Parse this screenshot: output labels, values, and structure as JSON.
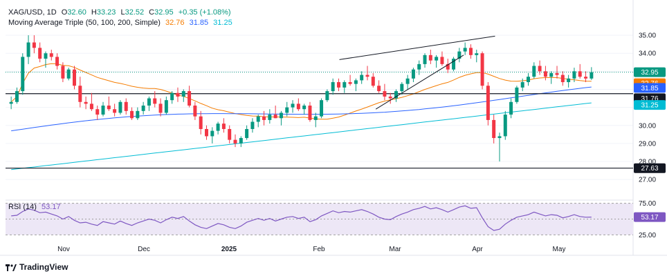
{
  "header": {
    "symbol": "XAG/USD, 1D",
    "open_label": "O",
    "open": "32.60",
    "high_label": "H",
    "high": "33.23",
    "low_label": "L",
    "low": "32.52",
    "close_label": "C",
    "close": "32.95",
    "change": "+0.35 (+1.08%)",
    "ma_label": "Moving Average Triple (50, 100, 200, Simple)",
    "ma50": "32.76",
    "ma100": "31.85",
    "ma200": "31.25"
  },
  "colors": {
    "up": "#089981",
    "down": "#f23645",
    "ma50": "#f57c00",
    "ma100": "#2962ff",
    "ma200": "#00bcd4",
    "rsi": "#7e57c2",
    "rsi_band": "#ede7f6",
    "hline": "#131722",
    "grid": "#f0f3fa",
    "price_line": "#089981"
  },
  "chart_data": [
    {
      "type": "candlestick",
      "x_ticks": [
        "Nov",
        "Dec",
        "2025",
        "Feb",
        "Mar",
        "Apr",
        "May"
      ],
      "y_ticks": [
        27.0,
        28.0,
        29.0,
        30.0,
        31.0,
        32.0,
        33.0,
        34.0,
        35.0
      ],
      "ylim": [
        26.7,
        35.5
      ],
      "horizontal_levels": [
        31.76,
        27.63
      ],
      "last_price": 32.95,
      "price_labels": [
        "32.95",
        "32.76",
        "31.85",
        "31.76",
        "31.25",
        "27.63"
      ],
      "ma_values_last": {
        "ma50": 32.76,
        "ma100": 31.85,
        "ma200": 31.25
      },
      "trendlines": [
        {
          "x": [
            0.532,
            0.78
          ],
          "y": [
            33.65,
            34.95
          ]
        },
        {
          "x": [
            0.59,
            0.73
          ],
          "y": [
            30.9,
            33.9
          ]
        }
      ],
      "ohlc": [
        [
          31.2,
          31.6,
          30.9,
          31.3
        ],
        [
          31.3,
          32.1,
          31.2,
          31.9
        ],
        [
          31.9,
          34.0,
          31.7,
          33.8
        ],
        [
          33.8,
          35.0,
          33.4,
          34.6
        ],
        [
          34.6,
          35.0,
          34.0,
          34.3
        ],
        [
          34.3,
          34.6,
          33.5,
          33.7
        ],
        [
          33.7,
          34.1,
          33.2,
          34.0
        ],
        [
          34.0,
          34.2,
          33.6,
          33.8
        ],
        [
          33.8,
          34.0,
          33.1,
          33.3
        ],
        [
          33.3,
          33.5,
          32.4,
          32.6
        ],
        [
          32.6,
          33.2,
          32.5,
          33.1
        ],
        [
          33.1,
          33.3,
          32.0,
          32.2
        ],
        [
          32.2,
          32.7,
          31.0,
          31.3
        ],
        [
          31.3,
          31.6,
          30.9,
          31.2
        ],
        [
          31.2,
          31.8,
          30.8,
          30.9
        ],
        [
          30.9,
          31.1,
          30.3,
          30.6
        ],
        [
          30.6,
          31.3,
          30.5,
          31.1
        ],
        [
          31.1,
          31.6,
          30.8,
          30.9
        ],
        [
          30.9,
          31.2,
          30.5,
          30.7
        ],
        [
          30.7,
          31.4,
          30.6,
          31.3
        ],
        [
          31.3,
          31.5,
          30.6,
          30.8
        ],
        [
          30.8,
          31.0,
          30.3,
          30.4
        ],
        [
          30.4,
          31.0,
          30.3,
          30.8
        ],
        [
          30.8,
          31.3,
          30.6,
          31.1
        ],
        [
          31.1,
          31.6,
          30.8,
          31.5
        ],
        [
          31.5,
          31.9,
          31.0,
          31.2
        ],
        [
          31.2,
          31.5,
          30.5,
          30.7
        ],
        [
          30.7,
          31.6,
          30.6,
          31.4
        ],
        [
          31.4,
          31.9,
          31.2,
          31.8
        ],
        [
          31.8,
          32.1,
          31.3,
          31.6
        ],
        [
          31.6,
          32.0,
          31.3,
          31.9
        ],
        [
          31.9,
          32.2,
          31.0,
          31.1
        ],
        [
          31.1,
          31.3,
          30.3,
          30.5
        ],
        [
          30.5,
          30.8,
          29.5,
          29.8
        ],
        [
          29.8,
          30.0,
          29.2,
          29.4
        ],
        [
          29.4,
          29.9,
          29.0,
          29.7
        ],
        [
          29.7,
          30.2,
          29.5,
          30.1
        ],
        [
          30.1,
          30.4,
          29.6,
          29.8
        ],
        [
          29.8,
          30.0,
          29.0,
          29.2
        ],
        [
          29.2,
          29.5,
          28.8,
          29.0
        ],
        [
          29.0,
          29.4,
          28.8,
          29.3
        ],
        [
          29.3,
          30.0,
          29.2,
          29.8
        ],
        [
          29.8,
          30.4,
          29.6,
          30.2
        ],
        [
          30.2,
          30.6,
          29.9,
          30.5
        ],
        [
          30.5,
          30.8,
          30.0,
          30.3
        ],
        [
          30.3,
          30.9,
          30.1,
          30.6
        ],
        [
          30.6,
          31.1,
          30.4,
          30.4
        ],
        [
          30.4,
          30.8,
          30.0,
          30.7
        ],
        [
          30.7,
          31.3,
          30.5,
          31.0
        ],
        [
          31.0,
          31.4,
          30.7,
          31.2
        ],
        [
          31.2,
          31.5,
          30.8,
          30.9
        ],
        [
          30.9,
          31.2,
          30.6,
          31.1
        ],
        [
          31.1,
          31.3,
          30.2,
          30.3
        ],
        [
          30.3,
          30.7,
          29.9,
          30.5
        ],
        [
          30.5,
          31.5,
          30.4,
          31.4
        ],
        [
          31.4,
          32.0,
          31.3,
          31.9
        ],
        [
          31.9,
          32.6,
          31.7,
          32.4
        ],
        [
          32.4,
          32.6,
          31.9,
          32.1
        ],
        [
          32.1,
          32.5,
          31.8,
          32.4
        ],
        [
          32.4,
          32.8,
          32.2,
          32.3
        ],
        [
          32.3,
          32.6,
          31.9,
          32.5
        ],
        [
          32.5,
          33.0,
          32.3,
          32.8
        ],
        [
          32.8,
          33.3,
          32.5,
          32.7
        ],
        [
          32.7,
          32.9,
          32.1,
          32.2
        ],
        [
          32.2,
          32.5,
          31.8,
          31.9
        ],
        [
          31.9,
          32.3,
          31.4,
          31.6
        ],
        [
          31.6,
          31.8,
          31.2,
          31.5
        ],
        [
          31.5,
          32.0,
          31.3,
          31.9
        ],
        [
          31.9,
          32.4,
          31.7,
          32.3
        ],
        [
          32.3,
          32.8,
          32.0,
          32.6
        ],
        [
          32.6,
          33.2,
          32.4,
          33.1
        ],
        [
          33.1,
          33.6,
          32.8,
          33.4
        ],
        [
          33.4,
          34.0,
          33.2,
          33.9
        ],
        [
          33.9,
          34.2,
          33.4,
          33.6
        ],
        [
          33.6,
          33.9,
          33.2,
          33.8
        ],
        [
          33.8,
          34.1,
          33.3,
          33.4
        ],
        [
          33.4,
          33.7,
          32.9,
          33.1
        ],
        [
          33.1,
          33.8,
          33.0,
          33.7
        ],
        [
          33.7,
          34.3,
          33.5,
          34.1
        ],
        [
          34.1,
          34.6,
          33.9,
          34.3
        ],
        [
          34.3,
          34.5,
          33.7,
          33.9
        ],
        [
          33.9,
          34.2,
          33.5,
          34.0
        ],
        [
          34.0,
          34.1,
          32.0,
          32.2
        ],
        [
          32.2,
          32.4,
          30.0,
          30.3
        ],
        [
          30.3,
          30.6,
          29.0,
          29.3
        ],
        [
          29.3,
          29.6,
          28.0,
          29.4
        ],
        [
          29.4,
          30.8,
          29.2,
          30.6
        ],
        [
          30.6,
          31.5,
          30.4,
          31.3
        ],
        [
          31.3,
          32.2,
          31.2,
          32.1
        ],
        [
          32.1,
          32.6,
          31.9,
          32.4
        ],
        [
          32.4,
          32.9,
          32.2,
          32.7
        ],
        [
          32.7,
          33.5,
          32.6,
          33.3
        ],
        [
          33.3,
          33.6,
          32.8,
          33.0
        ],
        [
          33.0,
          33.3,
          32.5,
          32.7
        ],
        [
          32.7,
          33.0,
          32.3,
          32.9
        ],
        [
          32.9,
          33.3,
          32.6,
          32.8
        ],
        [
          32.8,
          33.0,
          32.2,
          32.4
        ],
        [
          32.4,
          32.8,
          32.1,
          32.6
        ],
        [
          32.6,
          33.2,
          32.4,
          33.0
        ],
        [
          33.0,
          33.4,
          32.6,
          32.7
        ],
        [
          32.7,
          33.0,
          32.4,
          32.6
        ],
        [
          32.6,
          33.23,
          32.52,
          32.95
        ]
      ]
    },
    {
      "type": "line",
      "name": "RSI (14)",
      "last_value": "53.17",
      "y_ticks": [
        "75.00",
        "25.00"
      ],
      "ylim": [
        20,
        80
      ],
      "values": [
        55,
        56,
        62,
        66,
        64,
        60,
        61,
        58,
        55,
        50,
        54,
        48,
        44,
        45,
        42,
        40,
        46,
        44,
        42,
        47,
        43,
        40,
        44,
        47,
        50,
        48,
        44,
        49,
        53,
        51,
        54,
        47,
        41,
        37,
        35,
        39,
        43,
        41,
        37,
        35,
        39,
        45,
        48,
        51,
        48,
        51,
        47,
        50,
        53,
        54,
        51,
        53,
        46,
        49,
        55,
        59,
        63,
        60,
        62,
        61,
        63,
        65,
        62,
        58,
        53,
        50,
        49,
        54,
        58,
        61,
        65,
        67,
        70,
        66,
        68,
        65,
        61,
        65,
        69,
        71,
        67,
        68,
        52,
        38,
        32,
        34,
        42,
        48,
        53,
        55,
        57,
        61,
        58,
        55,
        57,
        56,
        52,
        54,
        57,
        54,
        53,
        53.17
      ]
    }
  ],
  "rsi_label": "RSI (14)",
  "brand": "TradingView"
}
